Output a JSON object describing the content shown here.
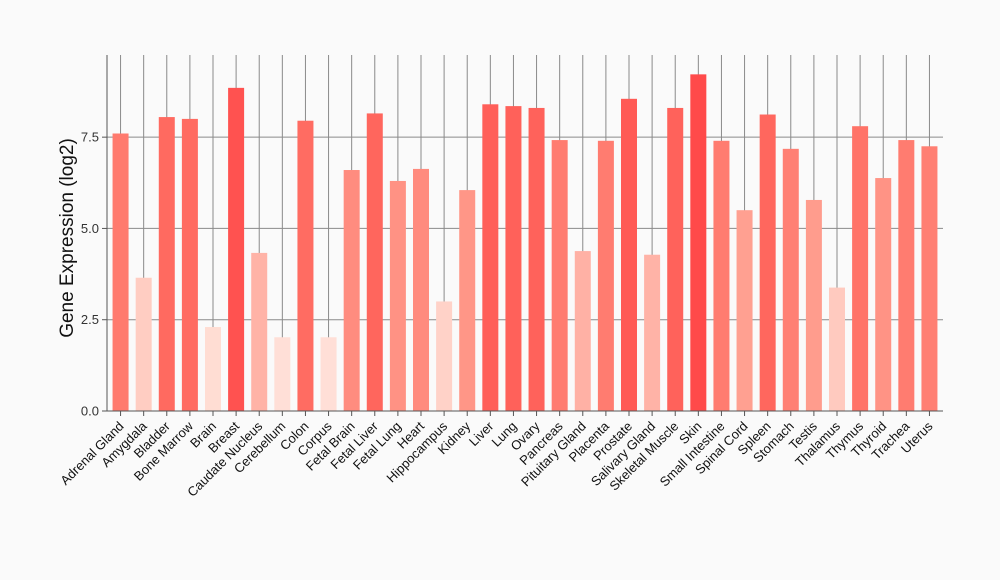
{
  "chart_data": {
    "type": "bar",
    "title": "",
    "xlabel": "",
    "ylabel": "Gene Expression (log2)",
    "ylim": [
      0,
      9.75
    ],
    "yticks": [
      0,
      2.5,
      5,
      7.5
    ],
    "ytick_labels": [
      "0.0",
      "2.5",
      "5.0",
      "7.5"
    ],
    "grid": true,
    "categories": [
      "Adrenal Gland",
      "Amygdala",
      "Bladder",
      "Bone Marrow",
      "Brain",
      "Breast",
      "Caudate Nucleus",
      "Cerebellum",
      "Colon",
      "Corpus",
      "Fetal Brain",
      "Fetal Liver",
      "Fetal Lung",
      "Heart",
      "Hippocampus",
      "Kidney",
      "Liver",
      "Lung",
      "Ovary",
      "Pancreas",
      "Pituitary Gland",
      "Placenta",
      "Prostate",
      "Salivary Gland",
      "Skeletal Muscle",
      "Skin",
      "Small Intestine",
      "Spinal Cord",
      "Spleen",
      "Stomach",
      "Testis",
      "Thalamus",
      "Thymus",
      "Thyroid",
      "Trachea",
      "Uterus"
    ],
    "values": [
      7.6,
      3.65,
      8.05,
      8.0,
      2.3,
      8.85,
      4.33,
      2.02,
      7.95,
      2.02,
      6.6,
      8.15,
      6.3,
      6.63,
      3.0,
      6.05,
      8.4,
      8.35,
      8.3,
      7.42,
      4.38,
      7.4,
      8.55,
      4.28,
      8.3,
      9.22,
      7.4,
      5.5,
      8.12,
      7.18,
      5.78,
      3.38,
      7.8,
      6.38,
      7.42,
      7.25
    ],
    "bar_colors": [
      "#ff7a6e",
      "#ffcdc2",
      "#ff6a60",
      "#ff6b61",
      "#ffddd3",
      "#ff5250",
      "#ffb3a7",
      "#ffdfd7",
      "#ff6c62",
      "#ffdfd7",
      "#ff8c7f",
      "#ff665d",
      "#ff9284",
      "#ff8b7e",
      "#ffd2c8",
      "#ff9687",
      "#ff5f59",
      "#ff615a",
      "#ff625b",
      "#ff7c70",
      "#ffb1a5",
      "#ff7c70",
      "#ff5a55",
      "#ffb3a7",
      "#ff625b",
      "#ff4a4a",
      "#ff7c70",
      "#ffa091",
      "#ff675e",
      "#ff8074",
      "#ff9c8d",
      "#ffcabf",
      "#ff7368",
      "#ff9385",
      "#ff7c70",
      "#ff7f73"
    ]
  }
}
